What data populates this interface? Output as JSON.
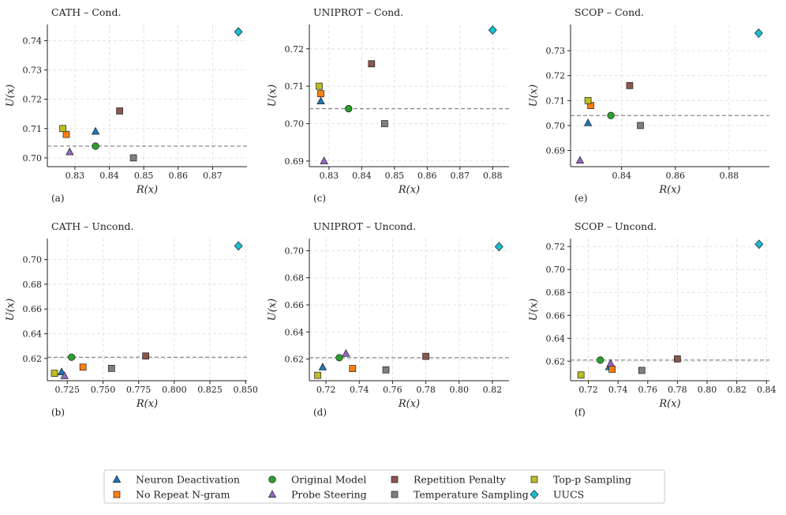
{
  "colors": {
    "Neuron Deactivation": "#1f77b4",
    "No Repeat N-gram": "#ff7f0e",
    "Original Model": "#2ca02c",
    "Probe Steering": "#9467bd",
    "Repetition Penalty": "#8c564b",
    "Temperature Sampling": "#7f7f7f",
    "Top-p Sampling": "#bcbd22",
    "UUCS": "#17becf"
  },
  "markers": {
    "Neuron Deactivation": "triangle",
    "No Repeat N-gram": "square",
    "Original Model": "circle",
    "Probe Steering": "triangle",
    "Repetition Penalty": "square",
    "Temperature Sampling": "square",
    "Top-p Sampling": "square",
    "UUCS": "diamond"
  },
  "legend": {
    "placement": "bottom-center",
    "entries": [
      "Neuron Deactivation",
      "No Repeat N-gram",
      "Original Model",
      "Probe Steering",
      "Repetition Penalty",
      "Temperature Sampling",
      "Top-p Sampling",
      "UUCS"
    ]
  },
  "chart_data": [
    {
      "type": "scatter",
      "title": "CATH – Cond.",
      "panel_label": "(a)",
      "xlabel": "R(x)",
      "ylabel": "U(x)",
      "xlim": [
        0.822,
        0.88
      ],
      "ylim": [
        0.697,
        0.7455
      ],
      "xticks": [
        0.83,
        0.84,
        0.85,
        0.86,
        0.87
      ],
      "xtick_labels": [
        "0.83",
        "0.84",
        "0.85",
        "0.86",
        "0.87"
      ],
      "yticks": [
        0.7,
        0.71,
        0.72,
        0.73,
        0.74
      ],
      "ytick_labels": [
        "0.70",
        "0.71",
        "0.72",
        "0.73",
        "0.74"
      ],
      "baseline": 0.704,
      "series": [
        {
          "name": "Neuron Deactivation",
          "x": [
            0.836
          ],
          "y": [
            0.709
          ]
        },
        {
          "name": "No Repeat N-gram",
          "x": [
            0.8275
          ],
          "y": [
            0.708
          ]
        },
        {
          "name": "Original Model",
          "x": [
            0.836
          ],
          "y": [
            0.704
          ]
        },
        {
          "name": "Probe Steering",
          "x": [
            0.8285
          ],
          "y": [
            0.702
          ]
        },
        {
          "name": "Repetition Penalty",
          "x": [
            0.843
          ],
          "y": [
            0.716
          ]
        },
        {
          "name": "Temperature Sampling",
          "x": [
            0.847
          ],
          "y": [
            0.7
          ]
        },
        {
          "name": "Top-p Sampling",
          "x": [
            0.8265
          ],
          "y": [
            0.71
          ]
        },
        {
          "name": "UUCS",
          "x": [
            0.8775
          ],
          "y": [
            0.743
          ]
        }
      ]
    },
    {
      "type": "scatter",
      "title": "UNIPROT – Cond.",
      "panel_label": "(c)",
      "xlabel": "R(x)",
      "ylabel": "U(x)",
      "xlim": [
        0.824,
        0.885
      ],
      "ylim": [
        0.6885,
        0.7265
      ],
      "xticks": [
        0.83,
        0.84,
        0.85,
        0.86,
        0.87,
        0.88
      ],
      "xtick_labels": [
        "0.83",
        "0.84",
        "0.85",
        "0.86",
        "0.87",
        "0.88"
      ],
      "yticks": [
        0.69,
        0.7,
        0.71,
        0.72
      ],
      "ytick_labels": [
        "0.69",
        "0.70",
        "0.71",
        "0.72"
      ],
      "baseline": 0.704,
      "series": [
        {
          "name": "Neuron Deactivation",
          "x": [
            0.8275
          ],
          "y": [
            0.706
          ]
        },
        {
          "name": "No Repeat N-gram",
          "x": [
            0.8275
          ],
          "y": [
            0.708
          ]
        },
        {
          "name": "Original Model",
          "x": [
            0.836
          ],
          "y": [
            0.704
          ]
        },
        {
          "name": "Probe Steering",
          "x": [
            0.8285
          ],
          "y": [
            0.69
          ]
        },
        {
          "name": "Repetition Penalty",
          "x": [
            0.843
          ],
          "y": [
            0.716
          ]
        },
        {
          "name": "Temperature Sampling",
          "x": [
            0.847
          ],
          "y": [
            0.7
          ]
        },
        {
          "name": "Top-p Sampling",
          "x": [
            0.827
          ],
          "y": [
            0.71
          ]
        },
        {
          "name": "UUCS",
          "x": [
            0.88
          ],
          "y": [
            0.725
          ]
        }
      ]
    },
    {
      "type": "scatter",
      "title": "SCOP – Cond.",
      "panel_label": "(e)",
      "xlabel": "R(x)",
      "ylabel": "U(x)",
      "xlim": [
        0.821,
        0.895
      ],
      "ylim": [
        0.6835,
        0.7405
      ],
      "xticks": [
        0.84,
        0.86,
        0.88
      ],
      "xtick_labels": [
        "0.84",
        "0.86",
        "0.88"
      ],
      "yticks": [
        0.69,
        0.7,
        0.71,
        0.72,
        0.73
      ],
      "ytick_labels": [
        "0.69",
        "0.70",
        "0.71",
        "0.72",
        "0.73"
      ],
      "baseline": 0.704,
      "series": [
        {
          "name": "Neuron Deactivation",
          "x": [
            0.8275
          ],
          "y": [
            0.701
          ]
        },
        {
          "name": "No Repeat N-gram",
          "x": [
            0.8285
          ],
          "y": [
            0.708
          ]
        },
        {
          "name": "Original Model",
          "x": [
            0.836
          ],
          "y": [
            0.704
          ]
        },
        {
          "name": "Probe Steering",
          "x": [
            0.8245
          ],
          "y": [
            0.686
          ]
        },
        {
          "name": "Repetition Penalty",
          "x": [
            0.843
          ],
          "y": [
            0.716
          ]
        },
        {
          "name": "Temperature Sampling",
          "x": [
            0.847
          ],
          "y": [
            0.7
          ]
        },
        {
          "name": "Top-p Sampling",
          "x": [
            0.8275
          ],
          "y": [
            0.71
          ]
        },
        {
          "name": "UUCS",
          "x": [
            0.891
          ],
          "y": [
            0.737
          ]
        }
      ]
    },
    {
      "type": "scatter",
      "title": "CATH – Uncond.",
      "panel_label": "(b)",
      "xlabel": "R(x)",
      "ylabel": "U(x)",
      "xlim": [
        0.711,
        0.851
      ],
      "ylim": [
        0.602,
        0.717
      ],
      "xticks": [
        0.725,
        0.75,
        0.775,
        0.8,
        0.825,
        0.85
      ],
      "xtick_labels": [
        "0.725",
        "0.750",
        "0.775",
        "0.800",
        "0.825",
        "0.850"
      ],
      "yticks": [
        0.62,
        0.64,
        0.66,
        0.68,
        0.7
      ],
      "ytick_labels": [
        "0.62",
        "0.64",
        "0.66",
        "0.68",
        "0.70"
      ],
      "baseline": 0.621,
      "series": [
        {
          "name": "Neuron Deactivation",
          "x": [
            0.721
          ],
          "y": [
            0.609
          ]
        },
        {
          "name": "No Repeat N-gram",
          "x": [
            0.736
          ],
          "y": [
            0.613
          ]
        },
        {
          "name": "Original Model",
          "x": [
            0.728
          ],
          "y": [
            0.621
          ]
        },
        {
          "name": "Probe Steering",
          "x": [
            0.723
          ],
          "y": [
            0.606
          ]
        },
        {
          "name": "Repetition Penalty",
          "x": [
            0.78
          ],
          "y": [
            0.622
          ]
        },
        {
          "name": "Temperature Sampling",
          "x": [
            0.756
          ],
          "y": [
            0.612
          ]
        },
        {
          "name": "Top-p Sampling",
          "x": [
            0.716
          ],
          "y": [
            0.608
          ]
        },
        {
          "name": "UUCS",
          "x": [
            0.845
          ],
          "y": [
            0.711
          ]
        }
      ]
    },
    {
      "type": "scatter",
      "title": "UNIPROT – Uncond.",
      "panel_label": "(d)",
      "xlabel": "R(x)",
      "ylabel": "U(x)",
      "xlim": [
        0.71,
        0.83
      ],
      "ylim": [
        0.604,
        0.709
      ],
      "xticks": [
        0.72,
        0.74,
        0.76,
        0.78,
        0.8,
        0.82
      ],
      "xtick_labels": [
        "0.72",
        "0.74",
        "0.76",
        "0.78",
        "0.80",
        "0.82"
      ],
      "yticks": [
        0.62,
        0.64,
        0.66,
        0.68,
        0.7
      ],
      "ytick_labels": [
        "0.62",
        "0.64",
        "0.66",
        "0.68",
        "0.70"
      ],
      "baseline": 0.621,
      "series": [
        {
          "name": "Neuron Deactivation",
          "x": [
            0.718
          ],
          "y": [
            0.614
          ]
        },
        {
          "name": "No Repeat N-gram",
          "x": [
            0.736
          ],
          "y": [
            0.613
          ]
        },
        {
          "name": "Original Model",
          "x": [
            0.728
          ],
          "y": [
            0.621
          ]
        },
        {
          "name": "Probe Steering",
          "x": [
            0.732
          ],
          "y": [
            0.624
          ]
        },
        {
          "name": "Repetition Penalty",
          "x": [
            0.78
          ],
          "y": [
            0.622
          ]
        },
        {
          "name": "Temperature Sampling",
          "x": [
            0.756
          ],
          "y": [
            0.612
          ]
        },
        {
          "name": "Top-p Sampling",
          "x": [
            0.715
          ],
          "y": [
            0.608
          ]
        },
        {
          "name": "UUCS",
          "x": [
            0.824
          ],
          "y": [
            0.703
          ]
        }
      ]
    },
    {
      "type": "scatter",
      "title": "SCOP – Uncond.",
      "panel_label": "(f)",
      "xlabel": "R(x)",
      "ylabel": "U(x)",
      "xlim": [
        0.708,
        0.842
      ],
      "ylim": [
        0.603,
        0.727
      ],
      "xticks": [
        0.72,
        0.74,
        0.76,
        0.78,
        0.8,
        0.82,
        0.84
      ],
      "xtick_labels": [
        "0.72",
        "0.74",
        "0.76",
        "0.78",
        "0.80",
        "0.82",
        "0.84"
      ],
      "yticks": [
        0.62,
        0.64,
        0.66,
        0.68,
        0.7,
        0.72
      ],
      "ytick_labels": [
        "0.62",
        "0.64",
        "0.66",
        "0.68",
        "0.70",
        "0.72"
      ],
      "baseline": 0.621,
      "series": [
        {
          "name": "Neuron Deactivation",
          "x": [
            0.734
          ],
          "y": [
            0.615
          ]
        },
        {
          "name": "No Repeat N-gram",
          "x": [
            0.736
          ],
          "y": [
            0.613
          ]
        },
        {
          "name": "Original Model",
          "x": [
            0.728
          ],
          "y": [
            0.621
          ]
        },
        {
          "name": "Probe Steering",
          "x": [
            0.735
          ],
          "y": [
            0.618
          ]
        },
        {
          "name": "Repetition Penalty",
          "x": [
            0.78
          ],
          "y": [
            0.622
          ]
        },
        {
          "name": "Temperature Sampling",
          "x": [
            0.756
          ],
          "y": [
            0.612
          ]
        },
        {
          "name": "Top-p Sampling",
          "x": [
            0.715
          ],
          "y": [
            0.608
          ]
        },
        {
          "name": "UUCS",
          "x": [
            0.835
          ],
          "y": [
            0.722
          ]
        }
      ]
    }
  ]
}
